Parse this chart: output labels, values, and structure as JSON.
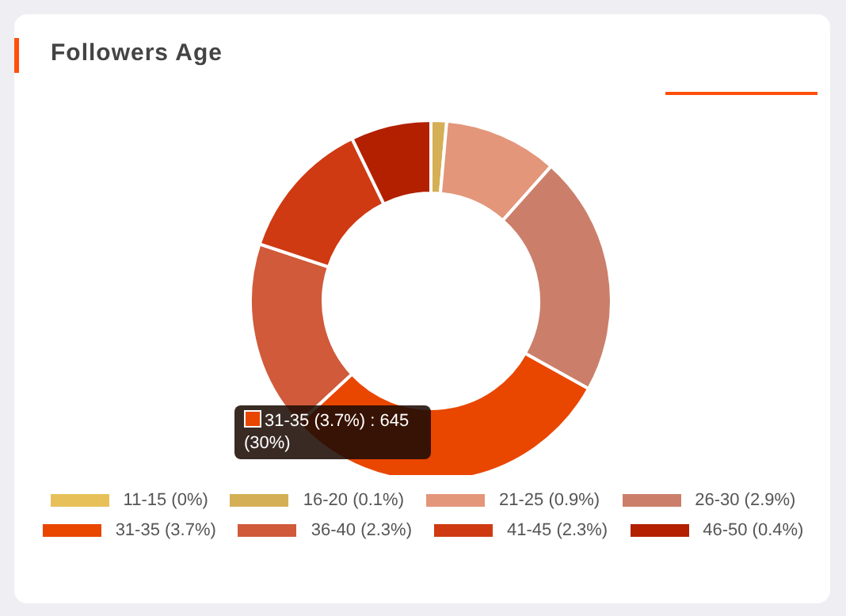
{
  "chart_data": {
    "type": "donut",
    "title": "Followers Age",
    "categories": [
      "11-15 (0%)",
      "16-20 (0.1%)",
      "21-25 (0.9%)",
      "26-30 (2.9%)",
      "31-35 (3.7%)",
      "36-40 (2.3%)",
      "41-45 (2.3%)",
      "46-50 (0.4%)"
    ],
    "values": [
      0,
      1.4,
      10.2,
      21.5,
      30,
      17,
      12.7,
      7.2
    ],
    "colors": [
      "#e8c05a",
      "#d4af55",
      "#e3967a",
      "#cb7f6a",
      "#e94600",
      "#d05a3a",
      "#cf3a12",
      "#b32000"
    ],
    "annotations": [
      "31-35 (3.7%) : 645 (30%)"
    ],
    "legend": "bottom"
  }
}
